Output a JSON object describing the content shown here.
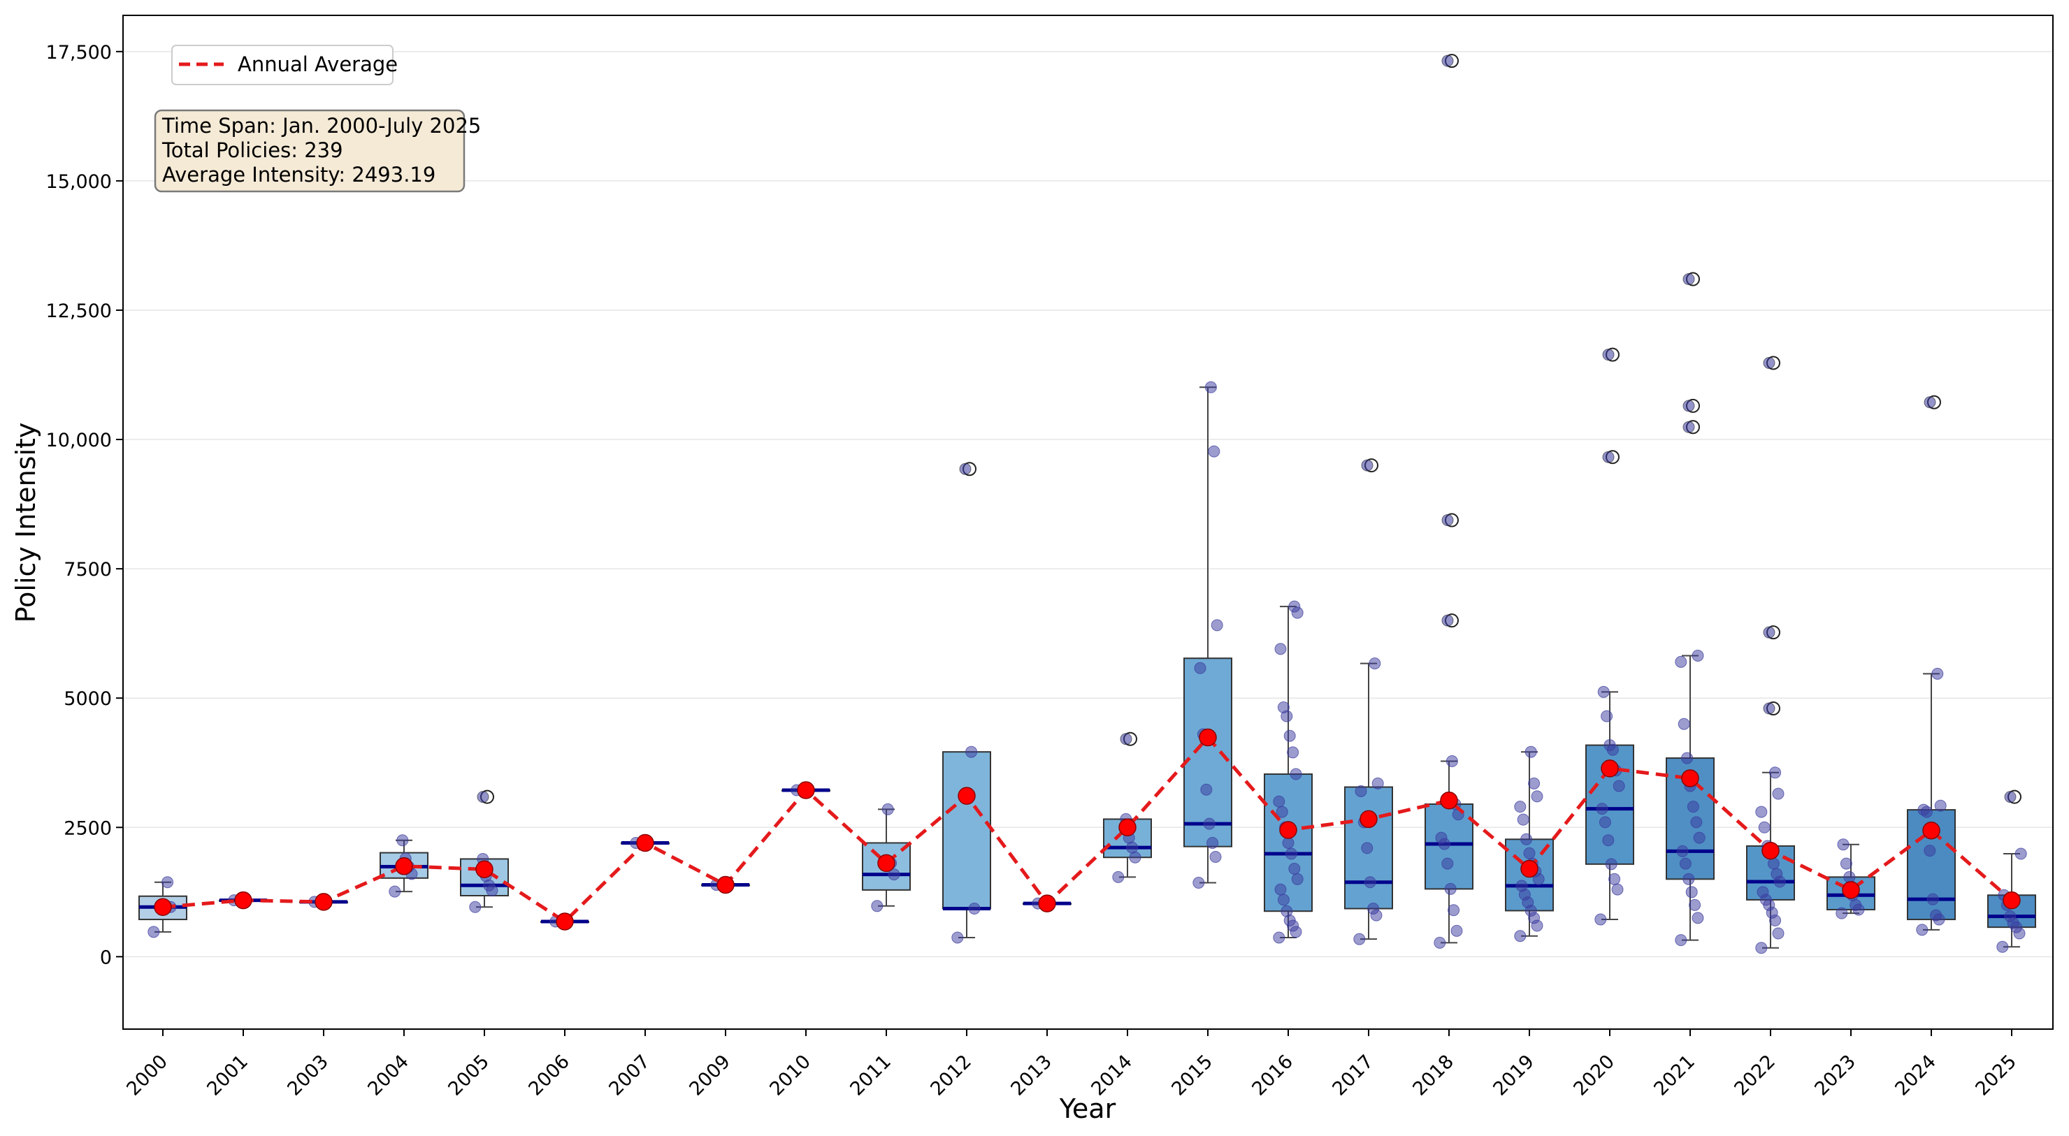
{
  "chart_data": {
    "type": "box",
    "xlabel": "Year",
    "ylabel": "Policy Intensity",
    "ylim": [
      -1400,
      18200
    ],
    "yticks": [
      {
        "value": 0,
        "label": "0"
      },
      {
        "value": 2500,
        "label": "2500"
      },
      {
        "value": 5000,
        "label": "5000"
      },
      {
        "value": 7500,
        "label": "7500"
      },
      {
        "value": 10000,
        "label": "10,000"
      },
      {
        "value": 12500,
        "label": "12,500"
      },
      {
        "value": 15000,
        "label": "15,000"
      },
      {
        "value": 17500,
        "label": "17,500"
      }
    ],
    "grid": "horizontal",
    "legend": {
      "position": "top-left",
      "label": "Annual Average"
    },
    "info_box": {
      "lines": [
        "Time Span: Jan. 2000-July 2025",
        "Total Policies: 239",
        "Average Intensity: 2493.19"
      ]
    },
    "colors": {
      "line": "#e41a1c",
      "mean_marker": "#ff0000",
      "median": "#00008b",
      "points": "#3a3a9e",
      "box_edge": "#333333"
    },
    "boxes": [
      {
        "year": "2000",
        "q1": 720,
        "median": 960,
        "q3": 1170,
        "whisker_low": 480,
        "whisker_high": 1440,
        "mean": 960,
        "fliers": [],
        "points": [
          480,
          960,
          1440
        ],
        "color": "#b3cfe6"
      },
      {
        "year": "2001",
        "q1": 1090,
        "median": 1090,
        "q3": 1090,
        "whisker_low": 1090,
        "whisker_high": 1090,
        "mean": 1090,
        "fliers": [],
        "points": [
          1090
        ],
        "color": "#add0e8"
      },
      {
        "year": "2003",
        "q1": 1060,
        "median": 1060,
        "q3": 1060,
        "whisker_low": 1060,
        "whisker_high": 1060,
        "mean": 1060,
        "fliers": [],
        "points": [
          1060
        ],
        "color": "#add0e8"
      },
      {
        "year": "2004",
        "q1": 1520,
        "median": 1740,
        "q3": 2010,
        "whisker_low": 1260,
        "whisker_high": 2250,
        "mean": 1750,
        "fliers": [],
        "points": [
          1260,
          1600,
          1740,
          1900,
          2250
        ],
        "color": "#a5cbe6"
      },
      {
        "year": "2005",
        "q1": 1180,
        "median": 1380,
        "q3": 1890,
        "whisker_low": 960,
        "whisker_high": 1890,
        "mean": 1690,
        "fliers": [
          3090
        ],
        "points": [
          960,
          1280,
          1380,
          1560,
          1890
        ],
        "color": "#9ec7e4"
      },
      {
        "year": "2006",
        "q1": 680,
        "median": 680,
        "q3": 680,
        "whisker_low": 680,
        "whisker_high": 680,
        "mean": 680,
        "fliers": [],
        "points": [
          680
        ],
        "color": "#a0c8e4"
      },
      {
        "year": "2007",
        "q1": 2200,
        "median": 2200,
        "q3": 2200,
        "whisker_low": 2200,
        "whisker_high": 2200,
        "mean": 2200,
        "fliers": [],
        "points": [
          2200
        ],
        "color": "#a0c8e4"
      },
      {
        "year": "2009",
        "q1": 1390,
        "median": 1390,
        "q3": 1390,
        "whisker_low": 1390,
        "whisker_high": 1390,
        "mean": 1390,
        "fliers": [],
        "points": [
          1390
        ],
        "color": "#a0c8e4"
      },
      {
        "year": "2010",
        "q1": 3220,
        "median": 3220,
        "q3": 3220,
        "whisker_low": 3220,
        "whisker_high": 3220,
        "mean": 3220,
        "fliers": [],
        "points": [
          3220
        ],
        "color": "#a0c8e4"
      },
      {
        "year": "2011",
        "q1": 1290,
        "median": 1590,
        "q3": 2200,
        "whisker_low": 980,
        "whisker_high": 2850,
        "mean": 1810,
        "fliers": [],
        "points": [
          980,
          1590,
          1810,
          2850
        ],
        "color": "#8ebedf"
      },
      {
        "year": "2012",
        "q1": 930,
        "median": 930,
        "q3": 3960,
        "whisker_low": 370,
        "whisker_high": 3960,
        "mean": 3110,
        "fliers": [
          9430
        ],
        "points": [
          370,
          930,
          3960
        ],
        "color": "#7fb5da"
      },
      {
        "year": "2013",
        "q1": 1030,
        "median": 1030,
        "q3": 1030,
        "whisker_low": 1030,
        "whisker_high": 1030,
        "mean": 1030,
        "fliers": [],
        "points": [
          1030
        ],
        "color": "#a0c8e4"
      },
      {
        "year": "2014",
        "q1": 1920,
        "median": 2110,
        "q3": 2660,
        "whisker_low": 1540,
        "whisker_high": 2660,
        "mean": 2500,
        "fliers": [
          4210
        ],
        "points": [
          1540,
          1920,
          2110,
          2300,
          2660
        ],
        "color": "#78b1d8"
      },
      {
        "year": "2015",
        "q1": 2130,
        "median": 2570,
        "q3": 5770,
        "whisker_low": 1430,
        "whisker_high": 11010,
        "mean": 4240,
        "fliers": [],
        "points": [
          1430,
          1930,
          2200,
          2570,
          3230,
          4300,
          5580,
          6410,
          9770,
          11010
        ],
        "color": "#6eaad5"
      },
      {
        "year": "2016",
        "q1": 880,
        "median": 1990,
        "q3": 3530,
        "whisker_low": 370,
        "whisker_high": 6770,
        "mean": 2450,
        "fliers": [],
        "points": [
          370,
          480,
          600,
          700,
          880,
          1100,
          1300,
          1500,
          1700,
          1990,
          2200,
          2500,
          2800,
          3000,
          3530,
          3950,
          4270,
          4650,
          4820,
          5950,
          6650,
          6770
        ],
        "color": "#64a3d1"
      },
      {
        "year": "2017",
        "q1": 930,
        "median": 1440,
        "q3": 3280,
        "whisker_low": 340,
        "whisker_high": 5670,
        "mean": 2660,
        "fliers": [
          9500
        ],
        "points": [
          340,
          800,
          930,
          1440,
          2100,
          2600,
          3200,
          3350,
          5670
        ],
        "color": "#64a3d1"
      },
      {
        "year": "2018",
        "q1": 1310,
        "median": 2180,
        "q3": 2950,
        "whisker_low": 270,
        "whisker_high": 3780,
        "mean": 3020,
        "fliers": [
          6500,
          8440,
          17320
        ],
        "points": [
          270,
          500,
          900,
          1310,
          1800,
          2180,
          2300,
          2750,
          2950,
          3780
        ],
        "color": "#5c9dcd"
      },
      {
        "year": "2019",
        "q1": 890,
        "median": 1370,
        "q3": 2270,
        "whisker_low": 400,
        "whisker_high": 3960,
        "mean": 1700,
        "fliers": [],
        "points": [
          400,
          600,
          750,
          890,
          1050,
          1200,
          1370,
          1500,
          1650,
          1800,
          2000,
          2270,
          2650,
          2900,
          3100,
          3350,
          3960
        ],
        "color": "#5a9bcc"
      },
      {
        "year": "2020",
        "q1": 1790,
        "median": 2860,
        "q3": 4090,
        "whisker_low": 720,
        "whisker_high": 5120,
        "mean": 3640,
        "fliers": [
          9660,
          11640
        ],
        "points": [
          720,
          1300,
          1500,
          1790,
          2250,
          2600,
          2860,
          3300,
          3600,
          4000,
          4090,
          4650,
          5120
        ],
        "color": "#5596c9"
      },
      {
        "year": "2021",
        "q1": 1500,
        "median": 2040,
        "q3": 3840,
        "whisker_low": 320,
        "whisker_high": 5820,
        "mean": 3450,
        "fliers": [
          10240,
          10650,
          13100
        ],
        "points": [
          320,
          750,
          1000,
          1250,
          1500,
          1800,
          2040,
          2300,
          2600,
          2900,
          3300,
          3840,
          4500,
          5700,
          5820
        ],
        "color": "#4f8fc4"
      },
      {
        "year": "2022",
        "q1": 1100,
        "median": 1450,
        "q3": 2140,
        "whisker_low": 170,
        "whisker_high": 3560,
        "mean": 2050,
        "fliers": [
          4800,
          6270,
          11480
        ],
        "points": [
          170,
          450,
          700,
          850,
          1000,
          1100,
          1250,
          1450,
          1600,
          1800,
          2000,
          2140,
          2500,
          2800,
          3150,
          3560
        ],
        "color": "#5596c9"
      },
      {
        "year": "2023",
        "q1": 910,
        "median": 1190,
        "q3": 1540,
        "whisker_low": 840,
        "whisker_high": 2170,
        "mean": 1290,
        "fliers": [],
        "points": [
          840,
          910,
          1000,
          1190,
          1540,
          1800,
          2170
        ],
        "color": "#5a9bcc"
      },
      {
        "year": "2024",
        "q1": 720,
        "median": 1110,
        "q3": 2840,
        "whisker_low": 520,
        "whisker_high": 5470,
        "mean": 2440,
        "fliers": [
          10720
        ],
        "points": [
          520,
          720,
          800,
          1110,
          2050,
          2800,
          2840,
          2920,
          5470
        ],
        "color": "#4b8bc1"
      },
      {
        "year": "2025",
        "q1": 570,
        "median": 780,
        "q3": 1190,
        "whisker_low": 190,
        "whisker_high": 1990,
        "mean": 1090,
        "fliers": [
          3090
        ],
        "points": [
          190,
          450,
          570,
          650,
          780,
          1000,
          1190,
          1990
        ],
        "color": "#4d8dc3"
      }
    ]
  }
}
